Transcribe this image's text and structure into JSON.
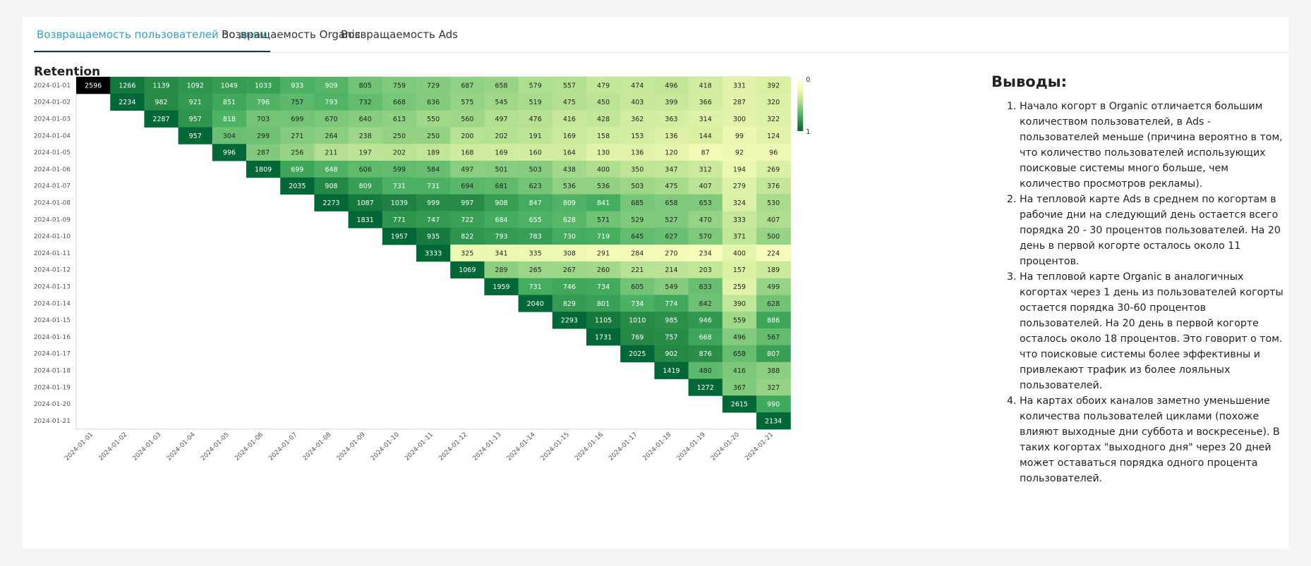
{
  "tabs": [
    {
      "label": "Возвращаемость пользователей по дням"
    },
    {
      "label": "Возвращаемость Organic"
    },
    {
      "label": "Возвращаемость Ads"
    }
  ],
  "panel_title": "Retention",
  "conclusions": {
    "title": "Выводы:",
    "items": [
      "Начало когорт в Organic отличается большим количеством пользователей, в Ads - пользователей меньше (причина вероятно в том, что количество пользователей использующих поисковые системы много больше, чем количество просмотров рекламы).",
      "На тепловой карте Ads в среднем по когортам в рабочие дни на следующий день остается всего порядка 20 - 30 процентов пользователей. На 20 день в первой когорте осталось около 11 процентов.",
      "На тепловой карте Organic в аналогичных когортах через 1 день из пользователей когорты остается порядка 30-60 процентов пользователей. На 20 день в первой когорте осталось около 18 процентов. Это говорит о том. что поисковые системы более эффективны и привлекают трафик из более лояльных пользователей.",
      "На картах обоих каналов заметно уменьшение количества пользователей циклами (похоже влияют выходные дни суббота и воскресенье). В таких когортах \"выходного дня\" через 20 дней может оставаться порядка одного процента пользователей."
    ]
  },
  "chart_data": {
    "type": "heatmap",
    "title": "",
    "x": [
      "2024-01-01",
      "2024-01-02",
      "2024-01-03",
      "2024-01-04",
      "2024-01-05",
      "2024-01-06",
      "2024-01-07",
      "2024-01-08",
      "2024-01-09",
      "2024-01-10",
      "2024-01-11",
      "2024-01-12",
      "2024-01-13",
      "2024-01-14",
      "2024-01-15",
      "2024-01-16",
      "2024-01-17",
      "2024-01-18",
      "2024-01-19",
      "2024-01-20",
      "2024-01-21"
    ],
    "y": [
      "2024-01-01",
      "2024-01-02",
      "2024-01-03",
      "2024-01-04",
      "2024-01-05",
      "2024-01-06",
      "2024-01-07",
      "2024-01-08",
      "2024-01-09",
      "2024-01-10",
      "2024-01-11",
      "2024-01-12",
      "2024-01-13",
      "2024-01-14",
      "2024-01-15",
      "2024-01-16",
      "2024-01-17",
      "2024-01-18",
      "2024-01-19",
      "2024-01-20",
      "2024-01-21"
    ],
    "values": [
      [
        2596,
        1266,
        1139,
        1092,
        1049,
        1033,
        933,
        909,
        805,
        759,
        729,
        687,
        658,
        579,
        557,
        479,
        474,
        496,
        418,
        331,
        392
      ],
      [
        null,
        2234,
        982,
        921,
        851,
        796,
        757,
        793,
        732,
        668,
        636,
        575,
        545,
        519,
        475,
        450,
        403,
        399,
        366,
        287,
        320
      ],
      [
        null,
        null,
        2287,
        957,
        818,
        703,
        699,
        670,
        640,
        613,
        550,
        560,
        497,
        476,
        416,
        428,
        362,
        363,
        314,
        300,
        322
      ],
      [
        null,
        null,
        null,
        957,
        304,
        299,
        271,
        264,
        238,
        250,
        250,
        200,
        202,
        191,
        169,
        158,
        153,
        136,
        144,
        99,
        124
      ],
      [
        null,
        null,
        null,
        null,
        996,
        287,
        256,
        211,
        197,
        202,
        189,
        168,
        169,
        160,
        164,
        130,
        136,
        120,
        87,
        92,
        96
      ],
      [
        null,
        null,
        null,
        null,
        null,
        1809,
        699,
        648,
        606,
        599,
        584,
        497,
        501,
        503,
        438,
        400,
        350,
        347,
        312,
        194,
        269
      ],
      [
        null,
        null,
        null,
        null,
        null,
        null,
        2035,
        908,
        809,
        731,
        731,
        694,
        681,
        623,
        536,
        536,
        503,
        475,
        407,
        279,
        376
      ],
      [
        null,
        null,
        null,
        null,
        null,
        null,
        null,
        2273,
        1087,
        1039,
        999,
        997,
        908,
        847,
        809,
        841,
        685,
        658,
        653,
        324,
        530
      ],
      [
        null,
        null,
        null,
        null,
        null,
        null,
        null,
        null,
        1831,
        771,
        747,
        722,
        684,
        655,
        628,
        571,
        529,
        527,
        470,
        333,
        407
      ],
      [
        null,
        null,
        null,
        null,
        null,
        null,
        null,
        null,
        null,
        1957,
        935,
        822,
        793,
        783,
        730,
        719,
        645,
        627,
        570,
        371,
        500
      ],
      [
        null,
        null,
        null,
        null,
        null,
        null,
        null,
        null,
        null,
        null,
        3333,
        325,
        341,
        335,
        308,
        291,
        284,
        270,
        234,
        400,
        224
      ],
      [
        null,
        null,
        null,
        null,
        null,
        null,
        null,
        null,
        null,
        null,
        null,
        1069,
        289,
        265,
        267,
        260,
        221,
        214,
        203,
        157,
        189
      ],
      [
        null,
        null,
        null,
        null,
        null,
        null,
        null,
        null,
        null,
        null,
        null,
        null,
        1959,
        731,
        746,
        734,
        605,
        549,
        633,
        259,
        499
      ],
      [
        null,
        null,
        null,
        null,
        null,
        null,
        null,
        null,
        null,
        null,
        null,
        null,
        null,
        2040,
        829,
        801,
        734,
        774,
        642,
        390,
        628
      ],
      [
        null,
        null,
        null,
        null,
        null,
        null,
        null,
        null,
        null,
        null,
        null,
        null,
        null,
        null,
        2293,
        1105,
        1010,
        985,
        946,
        559,
        886
      ],
      [
        null,
        null,
        null,
        null,
        null,
        null,
        null,
        null,
        null,
        null,
        null,
        null,
        null,
        null,
        null,
        1731,
        769,
        757,
        668,
        496,
        567
      ],
      [
        null,
        null,
        null,
        null,
        null,
        null,
        null,
        null,
        null,
        null,
        null,
        null,
        null,
        null,
        null,
        null,
        2025,
        902,
        876,
        658,
        807
      ],
      [
        null,
        null,
        null,
        null,
        null,
        null,
        null,
        null,
        null,
        null,
        null,
        null,
        null,
        null,
        null,
        null,
        null,
        1419,
        480,
        416,
        388
      ],
      [
        null,
        null,
        null,
        null,
        null,
        null,
        null,
        null,
        null,
        null,
        null,
        null,
        null,
        null,
        null,
        null,
        null,
        null,
        1272,
        367,
        327
      ],
      [
        null,
        null,
        null,
        null,
        null,
        null,
        null,
        null,
        null,
        null,
        null,
        null,
        null,
        null,
        null,
        null,
        null,
        null,
        null,
        2615,
        990
      ],
      [
        null,
        null,
        null,
        null,
        null,
        null,
        null,
        null,
        null,
        null,
        null,
        null,
        null,
        null,
        null,
        null,
        null,
        null,
        null,
        null,
        2134
      ]
    ],
    "colorbar": {
      "min_label": "0",
      "max_label": "1",
      "low_color": "#ffffcc",
      "high_color": "#006837",
      "max_color": "#000000"
    },
    "colors": {
      "accent": "#3a9fc0",
      "active_underline": "#1f2f5a"
    }
  }
}
